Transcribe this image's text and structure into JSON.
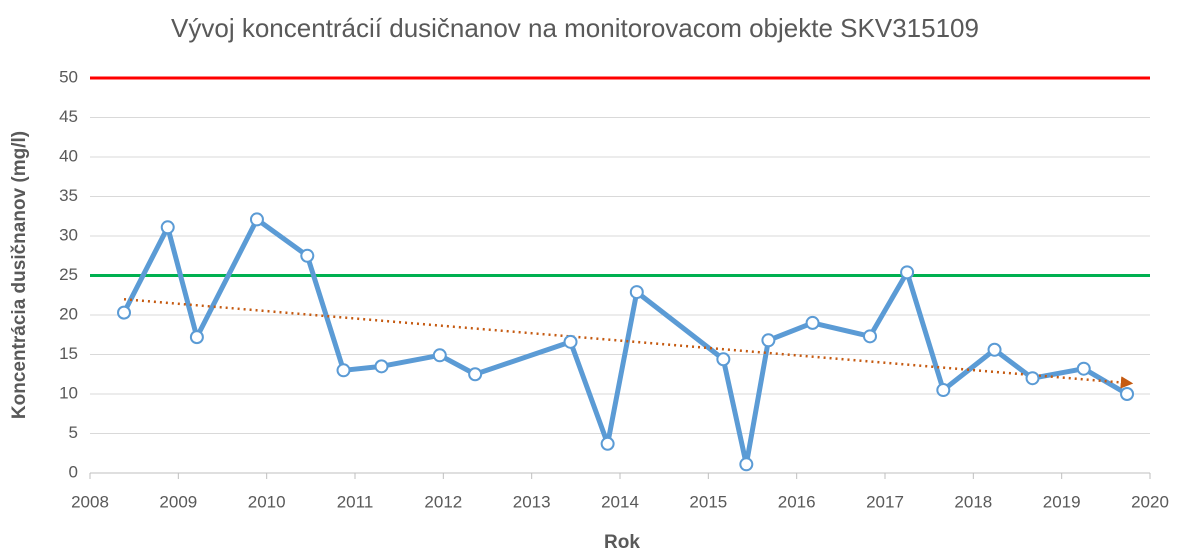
{
  "chart_data": {
    "type": "line",
    "title": "Vývoj koncentrácií dusičnanov na monitorovacom objekte SKV315109",
    "x_label": "Rok",
    "y_label": "Koncentrácia dusičnanov (mg/l)",
    "x": [
      2008.385,
      2008.88,
      2009.21,
      2009.89,
      2010.46,
      2010.87,
      2011.3,
      2011.96,
      2012.36,
      2013.44,
      2013.86,
      2014.19,
      2015.17,
      2015.43,
      2015.68,
      2016.18,
      2016.83,
      2017.25,
      2017.66,
      2018.24,
      2018.67,
      2019.25,
      2019.74
    ],
    "values": [
      20.3,
      31.1,
      17.2,
      32.1,
      27.5,
      13.0,
      13.5,
      14.9,
      12.5,
      16.6,
      3.7,
      22.9,
      14.4,
      1.1,
      16.8,
      19.0,
      17.3,
      25.4,
      10.5,
      15.6,
      12.0,
      13.2,
      10.0
    ],
    "color": "#5b9bd5",
    "trendline": {
      "x": [
        2008.385,
        2019.74
      ],
      "values": [
        22.0,
        11.4
      ],
      "color": "#c55a11"
    },
    "reference_lines": [
      {
        "value": 50,
        "color": "#ff0000"
      },
      {
        "value": 25,
        "color": "#00b050"
      }
    ],
    "xlim": [
      2008,
      2020
    ],
    "xticks": [
      2008,
      2009,
      2010,
      2011,
      2012,
      2013,
      2014,
      2015,
      2016,
      2017,
      2018,
      2019,
      2020
    ],
    "ylim": [
      0,
      50
    ],
    "yticks": [
      0,
      5,
      10,
      15,
      20,
      25,
      30,
      35,
      40,
      45,
      50
    ],
    "grid": true
  }
}
